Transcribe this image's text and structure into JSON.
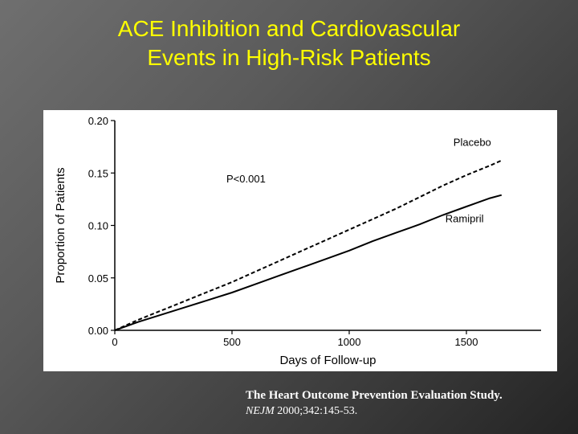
{
  "slide": {
    "title_line1": "ACE Inhibition and Cardiovascular",
    "title_line2": "Events in High-Risk Patients",
    "title_color": "#ffff00",
    "background_color": "#4a4a4a"
  },
  "citation": {
    "study": "The Heart Outcome Prevention Evaluation Study.",
    "journal": "NEJM",
    "reference": " 2000;342:145-53."
  },
  "chart_data": {
    "type": "line",
    "title": "",
    "xlabel": "Days of Follow-up",
    "ylabel": "Proportion of Patients",
    "xlim": [
      0,
      1750
    ],
    "ylim": [
      0,
      0.2
    ],
    "xticks": [
      0,
      500,
      1000,
      1500
    ],
    "xtick_labels": [
      "0",
      "500",
      "1000",
      "1500"
    ],
    "yticks": [
      0.0,
      0.05,
      0.1,
      0.15,
      0.2
    ],
    "ytick_labels": [
      "0.00",
      "0.05",
      "0.10",
      "0.15",
      "0.20"
    ],
    "annotation": "P<0.001",
    "grid": false,
    "series": [
      {
        "name": "Placebo",
        "style": "dashed",
        "x": [
          0,
          100,
          200,
          300,
          400,
          500,
          600,
          700,
          800,
          900,
          1000,
          1100,
          1200,
          1300,
          1400,
          1500,
          1600,
          1650
        ],
        "y": [
          0.0,
          0.01,
          0.019,
          0.028,
          0.037,
          0.046,
          0.056,
          0.066,
          0.076,
          0.086,
          0.096,
          0.106,
          0.116,
          0.127,
          0.138,
          0.148,
          0.157,
          0.162
        ]
      },
      {
        "name": "Ramipril",
        "style": "solid",
        "x": [
          0,
          100,
          200,
          300,
          400,
          500,
          600,
          700,
          800,
          900,
          1000,
          1100,
          1200,
          1300,
          1400,
          1500,
          1600,
          1650
        ],
        "y": [
          0.0,
          0.008,
          0.015,
          0.022,
          0.029,
          0.036,
          0.044,
          0.052,
          0.06,
          0.068,
          0.076,
          0.085,
          0.093,
          0.101,
          0.11,
          0.118,
          0.126,
          0.129
        ]
      }
    ]
  }
}
